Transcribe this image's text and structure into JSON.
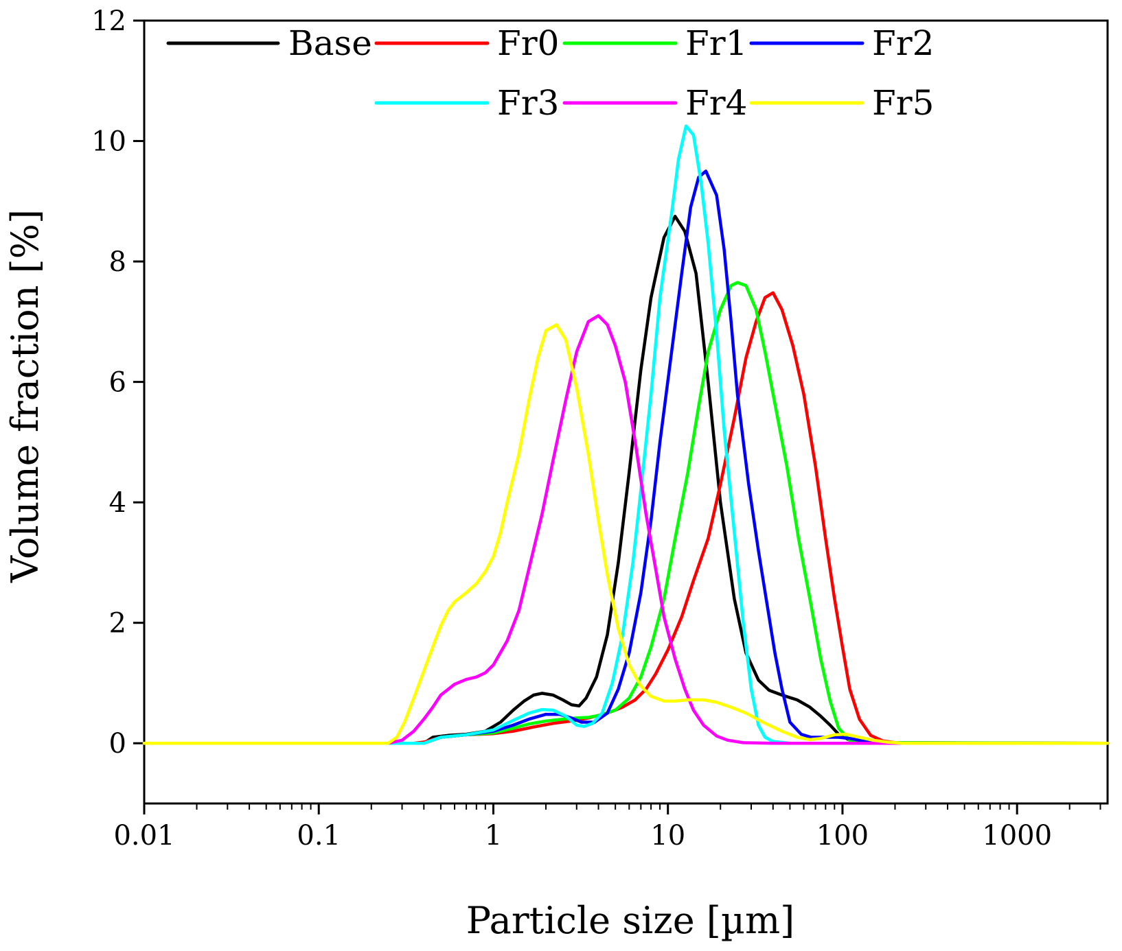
{
  "chart_data": {
    "type": "line",
    "title": "",
    "xlabel": "Particle size [µm]",
    "ylabel": "Volume fraction [%]",
    "xscale": "log",
    "xlim": [
      0.01,
      3300
    ],
    "ylim": [
      -1,
      12
    ],
    "x_ticks": [
      0.01,
      0.1,
      1,
      10,
      100,
      1000
    ],
    "x_tick_labels": [
      "0.01",
      "0.1",
      "1",
      "10",
      "100",
      "1000"
    ],
    "y_ticks": [
      0,
      2,
      4,
      6,
      8,
      10,
      12
    ],
    "y_tick_labels": [
      "0",
      "2",
      "4",
      "6",
      "8",
      "10",
      "12"
    ],
    "grid": false,
    "legend_position": "top",
    "series": [
      {
        "name": "Base",
        "color": "#000000",
        "points": [
          [
            0.01,
            0
          ],
          [
            0.25,
            0
          ],
          [
            0.3,
            0
          ],
          [
            0.4,
            0
          ],
          [
            0.45,
            0.1
          ],
          [
            0.55,
            0.13
          ],
          [
            0.7,
            0.15
          ],
          [
            0.9,
            0.2
          ],
          [
            1.1,
            0.35
          ],
          [
            1.3,
            0.55
          ],
          [
            1.5,
            0.7
          ],
          [
            1.7,
            0.8
          ],
          [
            1.9,
            0.83
          ],
          [
            2.2,
            0.8
          ],
          [
            2.5,
            0.72
          ],
          [
            2.8,
            0.64
          ],
          [
            3.1,
            0.62
          ],
          [
            3.4,
            0.75
          ],
          [
            3.9,
            1.1
          ],
          [
            4.5,
            1.8
          ],
          [
            5.2,
            3.0
          ],
          [
            6.0,
            4.5
          ],
          [
            7.0,
            6.2
          ],
          [
            8.0,
            7.4
          ],
          [
            9.5,
            8.4
          ],
          [
            11.0,
            8.75
          ],
          [
            12.5,
            8.5
          ],
          [
            14.5,
            7.8
          ],
          [
            17,
            6.0
          ],
          [
            20,
            4.0
          ],
          [
            24,
            2.4
          ],
          [
            28,
            1.5
          ],
          [
            33,
            1.05
          ],
          [
            38,
            0.88
          ],
          [
            45,
            0.8
          ],
          [
            55,
            0.72
          ],
          [
            65,
            0.6
          ],
          [
            75,
            0.45
          ],
          [
            85,
            0.3
          ],
          [
            95,
            0.15
          ],
          [
            110,
            0.05
          ],
          [
            150,
            0.01
          ],
          [
            200,
            0
          ],
          [
            3300,
            0
          ]
        ]
      },
      {
        "name": "Fr0",
        "color": "#ff0000",
        "points": [
          [
            0.01,
            0
          ],
          [
            0.25,
            0
          ],
          [
            0.35,
            0
          ],
          [
            0.4,
            0.02
          ],
          [
            0.5,
            0.1
          ],
          [
            0.7,
            0.14
          ],
          [
            1.0,
            0.16
          ],
          [
            1.3,
            0.2
          ],
          [
            1.7,
            0.27
          ],
          [
            2.2,
            0.33
          ],
          [
            2.8,
            0.37
          ],
          [
            3.5,
            0.42
          ],
          [
            4.5,
            0.5
          ],
          [
            5.5,
            0.6
          ],
          [
            6.5,
            0.72
          ],
          [
            7.5,
            0.9
          ],
          [
            8.5,
            1.15
          ],
          [
            10,
            1.55
          ],
          [
            12,
            2.1
          ],
          [
            14,
            2.7
          ],
          [
            17,
            3.4
          ],
          [
            20,
            4.3
          ],
          [
            24,
            5.4
          ],
          [
            28,
            6.4
          ],
          [
            32,
            7.0
          ],
          [
            36,
            7.4
          ],
          [
            40,
            7.48
          ],
          [
            45,
            7.2
          ],
          [
            52,
            6.6
          ],
          [
            60,
            5.8
          ],
          [
            70,
            4.6
          ],
          [
            80,
            3.4
          ],
          [
            90,
            2.4
          ],
          [
            100,
            1.6
          ],
          [
            110,
            0.9
          ],
          [
            125,
            0.4
          ],
          [
            145,
            0.13
          ],
          [
            170,
            0.04
          ],
          [
            200,
            0.01
          ],
          [
            3300,
            0
          ]
        ]
      },
      {
        "name": "Fr1",
        "color": "#00ff00",
        "points": [
          [
            0.01,
            0
          ],
          [
            0.3,
            0
          ],
          [
            0.4,
            0
          ],
          [
            0.5,
            0.1
          ],
          [
            0.7,
            0.14
          ],
          [
            1.0,
            0.17
          ],
          [
            1.3,
            0.25
          ],
          [
            1.6,
            0.32
          ],
          [
            2.0,
            0.37
          ],
          [
            2.5,
            0.4
          ],
          [
            3.0,
            0.42
          ],
          [
            3.5,
            0.43
          ],
          [
            4.0,
            0.46
          ],
          [
            5.0,
            0.55
          ],
          [
            6.0,
            0.75
          ],
          [
            7.0,
            1.1
          ],
          [
            8.0,
            1.6
          ],
          [
            9.5,
            2.4
          ],
          [
            11,
            3.4
          ],
          [
            13,
            4.5
          ],
          [
            15,
            5.6
          ],
          [
            17,
            6.5
          ],
          [
            20,
            7.2
          ],
          [
            23,
            7.6
          ],
          [
            25,
            7.65
          ],
          [
            28,
            7.6
          ],
          [
            32,
            7.2
          ],
          [
            36,
            6.5
          ],
          [
            40,
            5.8
          ],
          [
            48,
            4.6
          ],
          [
            56,
            3.4
          ],
          [
            65,
            2.4
          ],
          [
            75,
            1.4
          ],
          [
            85,
            0.7
          ],
          [
            95,
            0.25
          ],
          [
            110,
            0.05
          ],
          [
            130,
            0.01
          ],
          [
            3300,
            0
          ]
        ]
      },
      {
        "name": "Fr2",
        "color": "#0000ff",
        "points": [
          [
            0.01,
            0
          ],
          [
            0.3,
            0
          ],
          [
            0.4,
            0
          ],
          [
            0.5,
            0.1
          ],
          [
            0.7,
            0.14
          ],
          [
            1.0,
            0.2
          ],
          [
            1.3,
            0.3
          ],
          [
            1.6,
            0.4
          ],
          [
            2.0,
            0.48
          ],
          [
            2.4,
            0.48
          ],
          [
            2.8,
            0.42
          ],
          [
            3.2,
            0.35
          ],
          [
            3.8,
            0.35
          ],
          [
            4.5,
            0.5
          ],
          [
            5.2,
            0.9
          ],
          [
            6.0,
            1.5
          ],
          [
            7.0,
            2.5
          ],
          [
            8.0,
            3.7
          ],
          [
            9.0,
            5.0
          ],
          [
            10.5,
            6.5
          ],
          [
            12,
            7.8
          ],
          [
            13.5,
            8.9
          ],
          [
            15,
            9.4
          ],
          [
            16.5,
            9.5
          ],
          [
            19,
            9.1
          ],
          [
            21,
            8.2
          ],
          [
            23,
            7.0
          ],
          [
            25,
            5.8
          ],
          [
            29,
            4.3
          ],
          [
            33,
            3.2
          ],
          [
            37,
            2.3
          ],
          [
            41,
            1.5
          ],
          [
            45,
            0.9
          ],
          [
            50,
            0.35
          ],
          [
            58,
            0.15
          ],
          [
            66,
            0.1
          ],
          [
            80,
            0.1
          ],
          [
            95,
            0.1
          ],
          [
            110,
            0.08
          ],
          [
            130,
            0.04
          ],
          [
            160,
            0.01
          ],
          [
            200,
            0
          ],
          [
            3300,
            0
          ]
        ]
      },
      {
        "name": "Fr3",
        "color": "#00ffff",
        "points": [
          [
            0.01,
            0
          ],
          [
            0.3,
            0
          ],
          [
            0.4,
            0
          ],
          [
            0.5,
            0.1
          ],
          [
            0.7,
            0.14
          ],
          [
            1.0,
            0.22
          ],
          [
            1.3,
            0.38
          ],
          [
            1.6,
            0.5
          ],
          [
            1.9,
            0.56
          ],
          [
            2.2,
            0.55
          ],
          [
            2.6,
            0.45
          ],
          [
            3.0,
            0.3
          ],
          [
            3.3,
            0.28
          ],
          [
            3.7,
            0.33
          ],
          [
            4.2,
            0.5
          ],
          [
            4.8,
            1.0
          ],
          [
            5.5,
            1.8
          ],
          [
            6.3,
            3.0
          ],
          [
            7.0,
            4.2
          ],
          [
            8.0,
            5.8
          ],
          [
            9.0,
            7.4
          ],
          [
            10.5,
            8.8
          ],
          [
            11.5,
            9.7
          ],
          [
            12.7,
            10.25
          ],
          [
            14,
            10.1
          ],
          [
            15.5,
            9.3
          ],
          [
            17,
            8.3
          ],
          [
            19,
            6.8
          ],
          [
            21,
            5.2
          ],
          [
            24,
            3.5
          ],
          [
            27,
            2.0
          ],
          [
            30,
            0.9
          ],
          [
            33,
            0.3
          ],
          [
            36,
            0.1
          ],
          [
            40,
            0.03
          ],
          [
            50,
            0
          ],
          [
            3300,
            0
          ]
        ]
      },
      {
        "name": "Fr4",
        "color": "#ff00ff",
        "points": [
          [
            0.01,
            0
          ],
          [
            0.25,
            0
          ],
          [
            0.3,
            0.05
          ],
          [
            0.35,
            0.2
          ],
          [
            0.4,
            0.4
          ],
          [
            0.45,
            0.6
          ],
          [
            0.5,
            0.8
          ],
          [
            0.6,
            0.98
          ],
          [
            0.7,
            1.06
          ],
          [
            0.8,
            1.1
          ],
          [
            0.9,
            1.17
          ],
          [
            1.0,
            1.3
          ],
          [
            1.2,
            1.7
          ],
          [
            1.4,
            2.2
          ],
          [
            1.6,
            2.9
          ],
          [
            1.9,
            3.8
          ],
          [
            2.2,
            4.7
          ],
          [
            2.6,
            5.7
          ],
          [
            3.0,
            6.5
          ],
          [
            3.5,
            7.0
          ],
          [
            4.0,
            7.1
          ],
          [
            4.5,
            6.95
          ],
          [
            5.0,
            6.6
          ],
          [
            5.7,
            6.0
          ],
          [
            6.5,
            5.0
          ],
          [
            7.5,
            3.8
          ],
          [
            8.5,
            2.9
          ],
          [
            9.5,
            2.1
          ],
          [
            11,
            1.4
          ],
          [
            12.5,
            0.9
          ],
          [
            14,
            0.55
          ],
          [
            16,
            0.3
          ],
          [
            19,
            0.12
          ],
          [
            22,
            0.05
          ],
          [
            27,
            0.01
          ],
          [
            40,
            0
          ],
          [
            3300,
            0
          ]
        ]
      },
      {
        "name": "Fr5",
        "color": "#ffff00",
        "points": [
          [
            0.01,
            0
          ],
          [
            0.25,
            0
          ],
          [
            0.28,
            0.1
          ],
          [
            0.31,
            0.35
          ],
          [
            0.35,
            0.75
          ],
          [
            0.4,
            1.2
          ],
          [
            0.45,
            1.6
          ],
          [
            0.5,
            1.95
          ],
          [
            0.55,
            2.2
          ],
          [
            0.6,
            2.35
          ],
          [
            0.7,
            2.5
          ],
          [
            0.8,
            2.65
          ],
          [
            0.9,
            2.85
          ],
          [
            1.0,
            3.1
          ],
          [
            1.1,
            3.5
          ],
          [
            1.2,
            4.0
          ],
          [
            1.4,
            4.8
          ],
          [
            1.6,
            5.7
          ],
          [
            1.8,
            6.4
          ],
          [
            2.0,
            6.85
          ],
          [
            2.3,
            6.95
          ],
          [
            2.6,
            6.7
          ],
          [
            3.0,
            5.9
          ],
          [
            3.5,
            4.8
          ],
          [
            4.0,
            3.7
          ],
          [
            4.5,
            2.8
          ],
          [
            5.2,
            1.9
          ],
          [
            6.0,
            1.3
          ],
          [
            7.0,
            0.95
          ],
          [
            8.0,
            0.78
          ],
          [
            9.5,
            0.7
          ],
          [
            11,
            0.7
          ],
          [
            13,
            0.72
          ],
          [
            16,
            0.72
          ],
          [
            19,
            0.68
          ],
          [
            23,
            0.6
          ],
          [
            28,
            0.5
          ],
          [
            35,
            0.35
          ],
          [
            45,
            0.2
          ],
          [
            55,
            0.1
          ],
          [
            65,
            0.06
          ],
          [
            75,
            0.08
          ],
          [
            90,
            0.14
          ],
          [
            105,
            0.15
          ],
          [
            125,
            0.1
          ],
          [
            150,
            0.05
          ],
          [
            180,
            0.02
          ],
          [
            220,
            0
          ],
          [
            3300,
            0
          ]
        ]
      }
    ]
  }
}
